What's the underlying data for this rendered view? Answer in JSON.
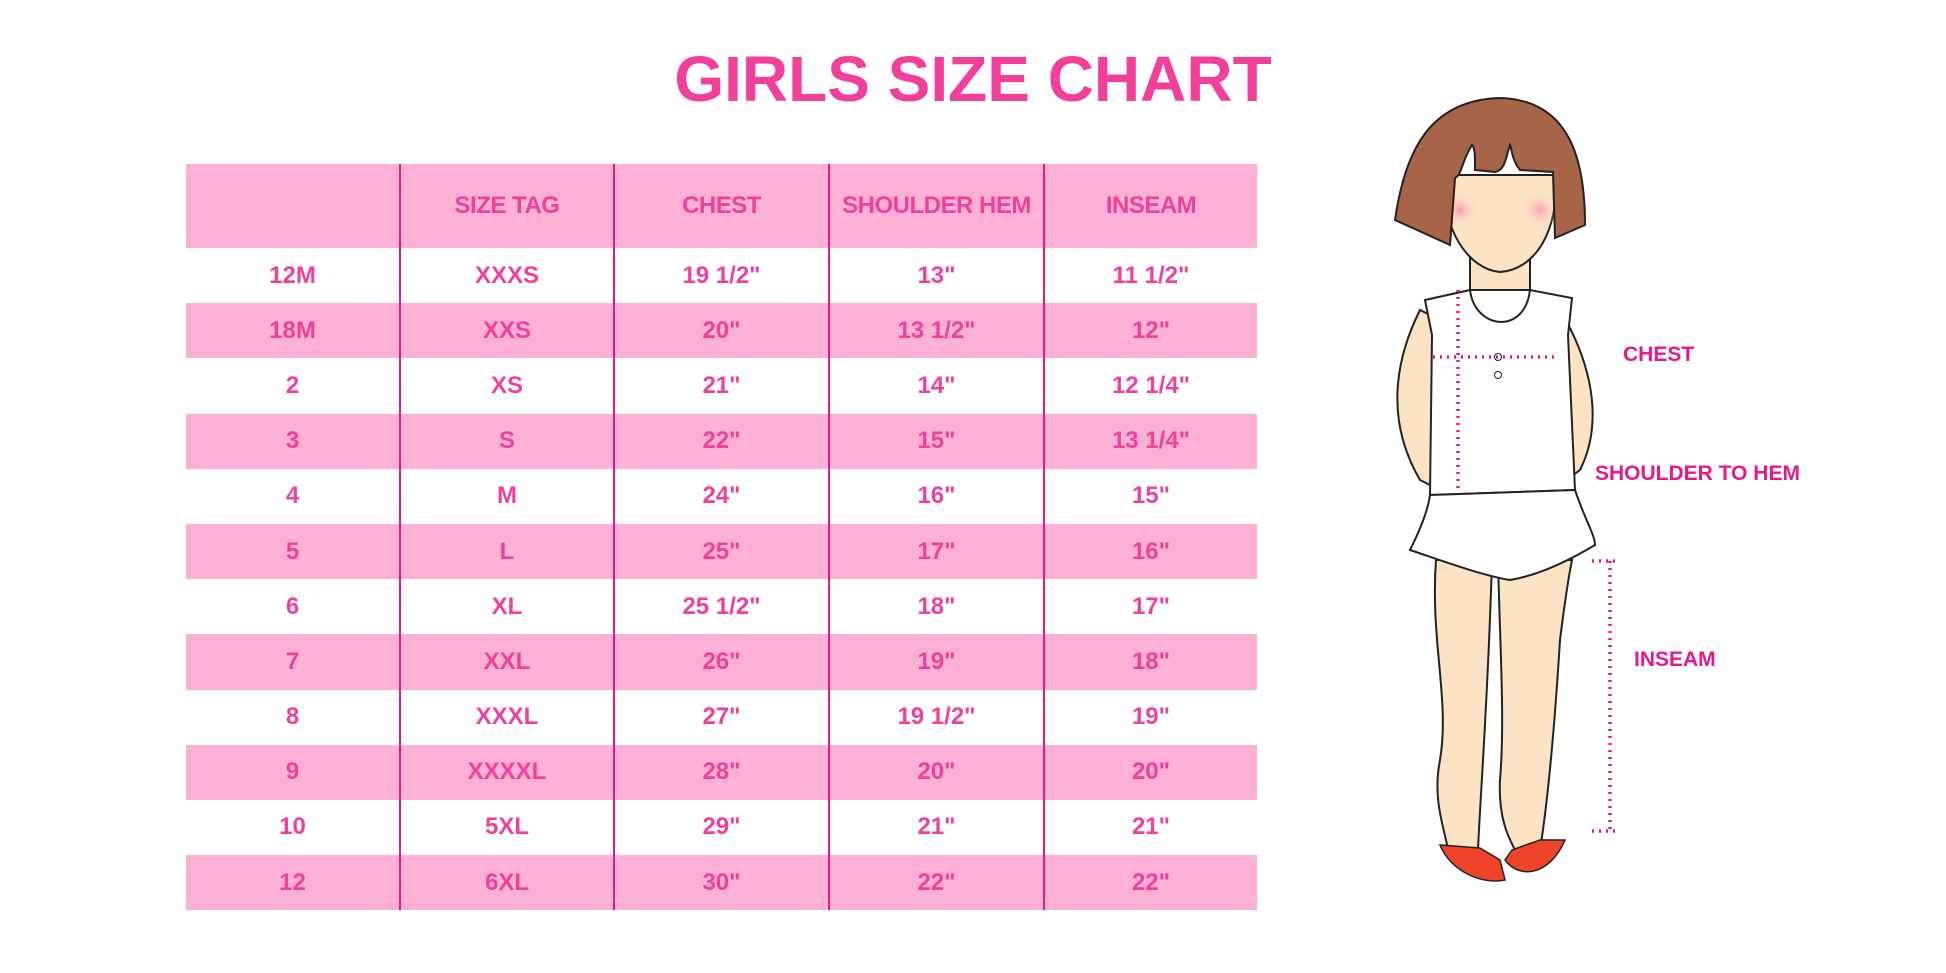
{
  "title": "GIRLS SIZE CHART",
  "table": {
    "headers": [
      "",
      "SIZE TAG",
      "CHEST",
      "SHOULDER HEM",
      "INSEAM"
    ],
    "rows": [
      [
        "12M",
        "XXXS",
        "19 1/2\"",
        "13\"",
        "11 1/2\""
      ],
      [
        "18M",
        "XXS",
        "20\"",
        "13 1/2\"",
        "12\""
      ],
      [
        "2",
        "XS",
        "21\"",
        "14\"",
        "12 1/4\""
      ],
      [
        "3",
        "S",
        "22\"",
        "15\"",
        "13 1/4\""
      ],
      [
        "4",
        "M",
        "24\"",
        "16\"",
        "15\""
      ],
      [
        "5",
        "L",
        "25\"",
        "17\"",
        "16\""
      ],
      [
        "6",
        "XL",
        "25 1/2\"",
        "18\"",
        "17\""
      ],
      [
        "7",
        "XXL",
        "26\"",
        "19\"",
        "18\""
      ],
      [
        "8",
        "XXXL",
        "27\"",
        "19 1/2\"",
        "19\""
      ],
      [
        "9",
        "XXXXL",
        "28\"",
        "20\"",
        "20\""
      ],
      [
        "10",
        "5XL",
        "29\"",
        "21\"",
        "21\""
      ],
      [
        "12",
        "6XL",
        "30\"",
        "22\"",
        "22\""
      ]
    ]
  },
  "figure": {
    "labels": {
      "chest": "CHEST",
      "shoulder_to_hem": "SHOULDER TO HEM",
      "inseam": "INSEAM"
    }
  },
  "colors": {
    "accent": "#f0409a",
    "row_fill": "#fbb0d4",
    "divider": "#e6198a"
  }
}
